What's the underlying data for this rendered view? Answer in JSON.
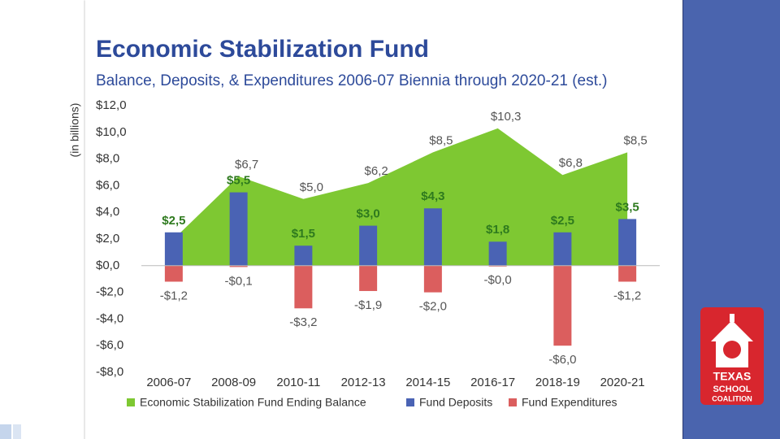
{
  "chart_data": {
    "type": "bar",
    "title": "Economic Stabilization Fund",
    "subtitle": "Balance, Deposits, & Expenditures 2006-07 Biennia through 2020-21 (est.)",
    "y_label": "(in billions)",
    "categories": [
      "2006-07",
      "2008-09",
      "2010-11",
      "2012-13",
      "2014-15",
      "2016-17",
      "2018-19",
      "2020-21"
    ],
    "series": [
      {
        "name": "Economic Stabilization Fund Ending Balance",
        "type": "area",
        "color": "#7ec832",
        "values": [
          2.0,
          6.7,
          5.0,
          6.2,
          8.5,
          10.3,
          6.8,
          8.5
        ],
        "value_labels": [
          null,
          "$6,7",
          "$5,0",
          "$6,2",
          "$8,5",
          "$10,3",
          "$6,8",
          "$8,5"
        ]
      },
      {
        "name": "Fund Deposits",
        "type": "bar",
        "color": "#4a63b4",
        "values": [
          2.5,
          5.5,
          1.5,
          3.0,
          4.3,
          1.8,
          2.5,
          3.5
        ],
        "value_labels": [
          "$2,5",
          "$5,5",
          "$1,5",
          "$3,0",
          "$4,3",
          "$1,8",
          "$2,5",
          "$3,5"
        ]
      },
      {
        "name": "Fund Expenditures",
        "type": "bar",
        "color": "#db5e5e",
        "values": [
          -1.2,
          -0.1,
          -3.2,
          -1.9,
          -2.0,
          -0.02,
          -6.0,
          -1.2
        ],
        "value_labels": [
          "-$1,2",
          "-$0,1",
          "-$3,2",
          "-$1,9",
          "-$2,0",
          "-$0,0",
          "-$6,0",
          "-$1,2"
        ]
      }
    ],
    "ylim": [
      -8,
      12
    ],
    "yticks": [
      {
        "value": 12,
        "label": "$12,0"
      },
      {
        "value": 10,
        "label": "$10,0"
      },
      {
        "value": 8,
        "label": "$8,0"
      },
      {
        "value": 6,
        "label": "$6,0"
      },
      {
        "value": 4,
        "label": "$4,0"
      },
      {
        "value": 2,
        "label": "$2,0"
      },
      {
        "value": 0,
        "label": "$0,0"
      },
      {
        "value": -2,
        "label": "-$2,0"
      },
      {
        "value": -4,
        "label": "-$4,0"
      },
      {
        "value": -6,
        "label": "-$6,0"
      },
      {
        "value": -8,
        "label": "-$8,0"
      }
    ],
    "grid": false,
    "legend": "bottom"
  },
  "logo": {
    "line1": "TEXAS",
    "line2": "SCHOOL",
    "line3": "COALITION"
  }
}
